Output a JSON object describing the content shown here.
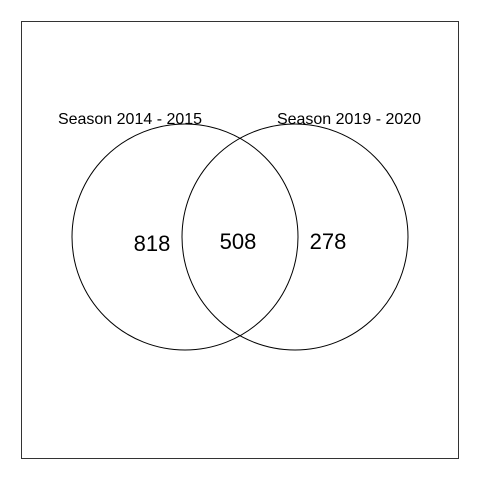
{
  "venn": {
    "sets": [
      {
        "label": "Season 2014 - 2015"
      },
      {
        "label": "Season 2019 - 2020"
      }
    ],
    "counts": {
      "only_a": "818",
      "both": "508",
      "only_b": "278"
    },
    "colors": {
      "stroke": "#000000",
      "frame": "#333333",
      "background": "#ffffff"
    }
  }
}
